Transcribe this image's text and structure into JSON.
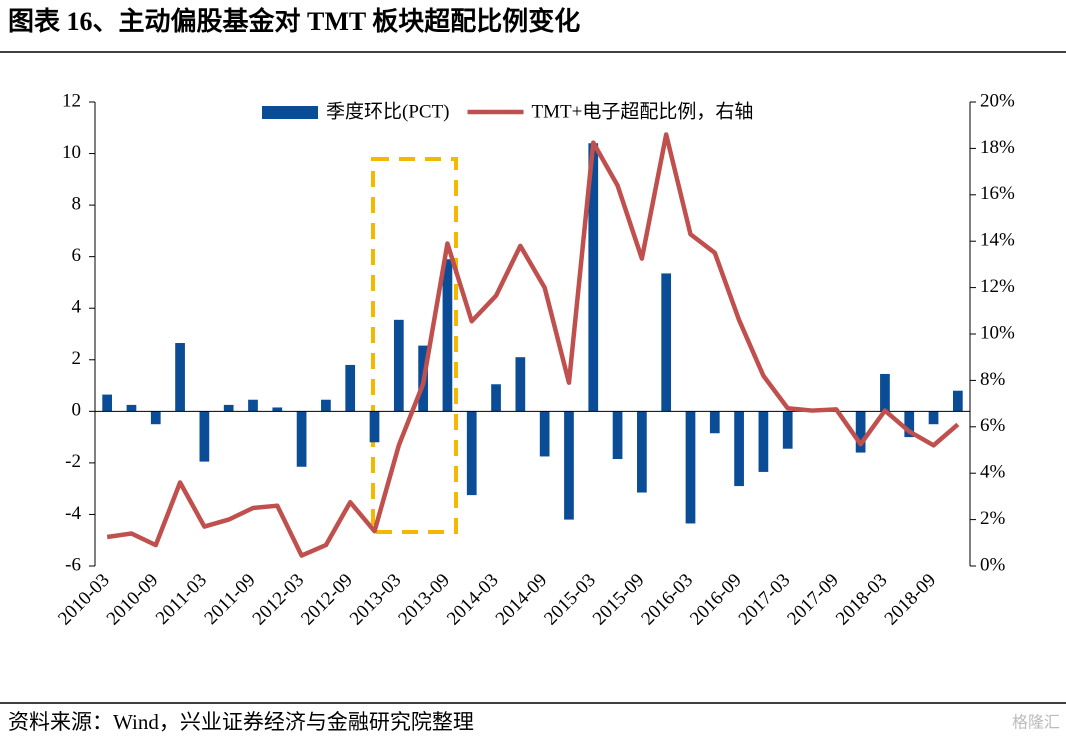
{
  "chart_data": {
    "type": "bar_line",
    "title": "图表 16、主动偏股基金对 TMT 板块超配比例变化",
    "source": "资料来源：Wind，兴业证券经济与金融研究院整理",
    "watermark": "格隆汇",
    "categories": [
      "2010-03",
      null,
      "2010-09",
      null,
      "2011-03",
      null,
      "2011-09",
      null,
      "2012-03",
      null,
      "2012-09",
      null,
      "2013-03",
      null,
      "2013-09",
      null,
      "2014-03",
      null,
      "2014-09",
      null,
      "2015-03",
      null,
      "2015-09",
      null,
      "2016-03",
      null,
      "2016-09",
      null,
      "2017-03",
      null,
      "2017-09",
      null,
      "2018-03",
      null,
      "2018-09",
      null
    ],
    "series": [
      {
        "name": "季度环比(PCT)",
        "color": "#0a4d96",
        "kind": "bar",
        "axis": "y",
        "values": [
          0.65,
          0.25,
          -0.5,
          2.65,
          -1.95,
          0.25,
          0.45,
          0.15,
          -2.15,
          0.45,
          1.8,
          -1.2,
          3.55,
          2.55,
          5.9,
          -3.25,
          1.05,
          2.1,
          -1.75,
          -4.2,
          10.4,
          -1.85,
          -3.15,
          5.35,
          -4.35,
          -0.85,
          -2.9,
          -2.35,
          -1.45,
          0,
          0,
          -1.6,
          1.45,
          -1.0,
          -0.5,
          0.8
        ]
      },
      {
        "name": "TMT+电子超配比例，右轴",
        "color": "#c0504d",
        "kind": "line",
        "axis": "y2",
        "values": [
          1.25,
          1.4,
          0.9,
          3.6,
          1.7,
          2.0,
          2.5,
          2.6,
          0.45,
          0.9,
          2.75,
          1.5,
          5.2,
          7.85,
          13.9,
          10.55,
          11.65,
          13.8,
          12.0,
          7.9,
          18.25,
          16.4,
          13.25,
          18.6,
          14.3,
          13.5,
          10.6,
          8.2,
          6.8,
          6.7,
          6.75,
          5.25,
          6.7,
          5.8,
          5.2,
          6.1
        ]
      }
    ],
    "ylim": [
      -6,
      12
    ],
    "yticks": [
      -6,
      -4,
      -2,
      0,
      2,
      4,
      6,
      8,
      10,
      12
    ],
    "y2lim": [
      0,
      20
    ],
    "y2ticks": [
      {
        "value": 0,
        "label": "0%"
      },
      {
        "value": 2,
        "label": "2%"
      },
      {
        "value": 4,
        "label": "4%"
      },
      {
        "value": 6,
        "label": "6%"
      },
      {
        "value": 8,
        "label": "8%"
      },
      {
        "value": 10,
        "label": "10%"
      },
      {
        "value": 12,
        "label": "12%"
      },
      {
        "value": 14,
        "label": "14%"
      },
      {
        "value": 16,
        "label": "16%"
      },
      {
        "value": 18,
        "label": "18%"
      },
      {
        "value": 20,
        "label": "20%"
      }
    ],
    "legend": "top"
  }
}
